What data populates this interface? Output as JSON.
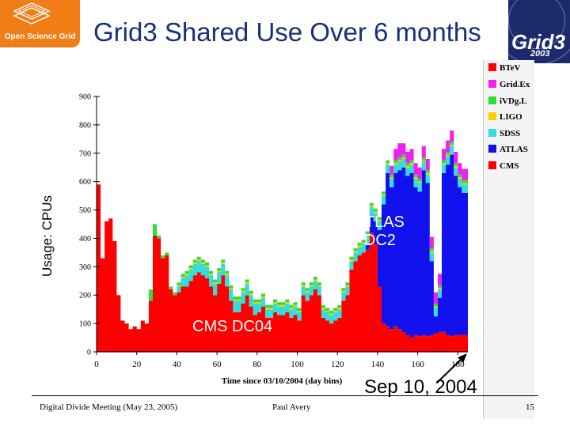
{
  "osg_logo_text": "Open Science Grid",
  "grid3_logo_text": "Grid3",
  "grid3_logo_year": "2003",
  "slide_title": "Grid3 Shared Use Over 6 months",
  "y_axis_label": "Usage: CPUs",
  "footer": {
    "left": "Digital Divide Meeting (May 23, 2005)",
    "center": "Paul Avery",
    "page": "15"
  },
  "annotations": {
    "cms": "CMS DC04",
    "atlas_line1": "ATLAS",
    "atlas_line2": "DC2",
    "date": "Sep 10, 2004"
  },
  "colors": {
    "BTeV": "#ff0000",
    "GridEx": "#ee22ee",
    "iVDgL": "#33dd33",
    "LIGO": "#ffcc00",
    "SDSS": "#33dddd",
    "ATLAS": "#1111ee",
    "CMS": "#ff0000"
  },
  "chart_data": {
    "type": "area",
    "stacked": true,
    "xlabel": "Time since 03/10/2004 (day bins)",
    "ylabel": "Usage: CPUs",
    "xlim": [
      0,
      185
    ],
    "ylim": [
      0,
      900
    ],
    "xticks": [
      "0",
      "20",
      "40",
      "60",
      "80",
      "100",
      "120",
      "140",
      "160",
      "180"
    ],
    "yticks": [
      "0",
      "100",
      "200",
      "300",
      "400",
      "500",
      "600",
      "700",
      "800",
      "900"
    ],
    "legend_position": "right",
    "legend": [
      "BTeV",
      "Grid.Ex",
      "iVDg.L",
      "LIGO",
      "SDSS",
      "ATLAS",
      "CMS"
    ],
    "x": [
      0,
      2,
      4,
      6,
      8,
      10,
      12,
      14,
      16,
      18,
      20,
      22,
      24,
      26,
      28,
      30,
      32,
      34,
      36,
      38,
      40,
      42,
      44,
      46,
      48,
      50,
      52,
      54,
      56,
      58,
      60,
      62,
      64,
      66,
      68,
      70,
      72,
      74,
      76,
      78,
      80,
      82,
      84,
      86,
      88,
      90,
      92,
      94,
      96,
      98,
      100,
      102,
      104,
      106,
      108,
      110,
      112,
      114,
      116,
      118,
      120,
      122,
      124,
      126,
      128,
      130,
      132,
      134,
      136,
      138,
      140,
      142,
      144,
      146,
      148,
      150,
      152,
      154,
      156,
      158,
      160,
      162,
      164,
      166,
      168,
      170,
      172,
      174,
      176,
      178,
      180,
      182,
      184
    ],
    "series": [
      {
        "name": "CMS",
        "values": [
          590,
          330,
          460,
          470,
          390,
          200,
          110,
          100,
          80,
          90,
          80,
          110,
          100,
          180,
          410,
          400,
          330,
          340,
          220,
          200,
          210,
          230,
          230,
          250,
          270,
          280,
          270,
          260,
          230,
          200,
          240,
          270,
          230,
          180,
          140,
          140,
          170,
          200,
          160,
          130,
          140,
          160,
          120,
          120,
          140,
          130,
          130,
          140,
          120,
          130,
          110,
          200,
          180,
          200,
          220,
          200,
          120,
          110,
          100,
          110,
          120,
          180,
          200,
          290,
          320,
          340,
          350,
          360,
          420,
          380,
          230,
          100,
          90,
          80,
          90,
          80,
          70,
          60,
          50,
          60,
          55,
          60,
          55,
          60,
          65,
          70,
          70,
          60,
          55,
          60,
          60,
          60,
          60
        ]
      },
      {
        "name": "ATLAS",
        "values": [
          0,
          0,
          0,
          0,
          0,
          0,
          0,
          0,
          0,
          0,
          0,
          0,
          0,
          0,
          0,
          0,
          0,
          0,
          0,
          0,
          0,
          0,
          0,
          0,
          0,
          0,
          0,
          0,
          0,
          0,
          0,
          0,
          0,
          0,
          0,
          0,
          0,
          0,
          0,
          0,
          0,
          0,
          0,
          0,
          0,
          0,
          0,
          0,
          0,
          0,
          0,
          0,
          0,
          0,
          0,
          0,
          0,
          0,
          0,
          0,
          0,
          0,
          0,
          0,
          0,
          0,
          0,
          20,
          60,
          80,
          200,
          420,
          540,
          500,
          540,
          560,
          580,
          560,
          580,
          520,
          510,
          580,
          540,
          260,
          60,
          120,
          560,
          600,
          640,
          560,
          520,
          500,
          500
        ]
      },
      {
        "name": "SDSS",
        "values": [
          0,
          0,
          0,
          0,
          0,
          0,
          0,
          0,
          0,
          0,
          0,
          0,
          0,
          0,
          0,
          0,
          0,
          0,
          0,
          0,
          20,
          30,
          40,
          40,
          40,
          40,
          40,
          40,
          40,
          40,
          40,
          40,
          40,
          40,
          40,
          40,
          40,
          40,
          40,
          40,
          30,
          30,
          30,
          30,
          30,
          30,
          30,
          30,
          30,
          30,
          30,
          30,
          30,
          30,
          30,
          30,
          30,
          30,
          30,
          30,
          30,
          30,
          30,
          30,
          30,
          30,
          30,
          30,
          30,
          30,
          30,
          30,
          30,
          30,
          30,
          30,
          30,
          30,
          30,
          30,
          30,
          30,
          30,
          30,
          30,
          30,
          30,
          30,
          30,
          30,
          30,
          30,
          30
        ]
      },
      {
        "name": "LIGO",
        "values": [
          0,
          0,
          0,
          0,
          0,
          0,
          0,
          0,
          0,
          0,
          0,
          0,
          0,
          0,
          0,
          0,
          0,
          0,
          0,
          0,
          5,
          5,
          5,
          5,
          5,
          5,
          5,
          5,
          5,
          5,
          5,
          5,
          5,
          5,
          5,
          5,
          5,
          5,
          5,
          5,
          5,
          5,
          5,
          5,
          5,
          5,
          5,
          5,
          5,
          5,
          5,
          5,
          5,
          5,
          5,
          5,
          5,
          5,
          5,
          5,
          5,
          5,
          5,
          5,
          5,
          5,
          5,
          5,
          5,
          5,
          5,
          5,
          5,
          5,
          5,
          5,
          5,
          5,
          5,
          5,
          5,
          5,
          5,
          5,
          5,
          5,
          5,
          5,
          5,
          5,
          5,
          5,
          5
        ]
      },
      {
        "name": "iVDgL",
        "values": [
          0,
          0,
          0,
          0,
          0,
          0,
          0,
          0,
          0,
          0,
          0,
          0,
          0,
          40,
          40,
          10,
          10,
          10,
          10,
          10,
          10,
          10,
          10,
          10,
          10,
          10,
          10,
          10,
          10,
          10,
          10,
          10,
          10,
          10,
          10,
          10,
          10,
          10,
          10,
          10,
          10,
          10,
          10,
          10,
          10,
          10,
          10,
          10,
          10,
          10,
          10,
          10,
          10,
          10,
          10,
          10,
          10,
          10,
          10,
          10,
          10,
          10,
          10,
          10,
          10,
          10,
          10,
          10,
          10,
          10,
          10,
          10,
          10,
          10,
          10,
          10,
          10,
          10,
          10,
          10,
          10,
          10,
          10,
          10,
          10,
          10,
          10,
          10,
          10,
          10,
          10,
          10,
          10
        ]
      },
      {
        "name": "GridEx",
        "values": [
          0,
          0,
          0,
          0,
          0,
          0,
          0,
          0,
          0,
          0,
          0,
          0,
          0,
          0,
          0,
          0,
          0,
          0,
          0,
          0,
          0,
          0,
          0,
          0,
          0,
          0,
          0,
          0,
          0,
          0,
          0,
          0,
          0,
          0,
          0,
          0,
          0,
          0,
          0,
          0,
          0,
          0,
          0,
          0,
          0,
          0,
          0,
          0,
          0,
          0,
          0,
          0,
          0,
          0,
          0,
          0,
          0,
          0,
          0,
          0,
          0,
          0,
          0,
          0,
          0,
          0,
          0,
          0,
          0,
          0,
          0,
          0,
          0,
          30,
          40,
          50,
          40,
          40,
          40,
          40,
          40,
          40,
          40,
          40,
          40,
          40,
          40,
          40,
          40,
          40,
          40,
          40,
          40
        ]
      },
      {
        "name": "BTeV",
        "values": [
          0,
          0,
          0,
          0,
          0,
          0,
          0,
          0,
          0,
          0,
          0,
          0,
          0,
          0,
          0,
          0,
          0,
          0,
          0,
          0,
          0,
          0,
          0,
          0,
          0,
          0,
          0,
          0,
          0,
          0,
          0,
          0,
          0,
          0,
          0,
          0,
          0,
          0,
          0,
          0,
          0,
          0,
          0,
          0,
          0,
          0,
          0,
          0,
          0,
          0,
          0,
          0,
          0,
          0,
          0,
          0,
          0,
          0,
          0,
          0,
          0,
          0,
          0,
          0,
          0,
          0,
          0,
          0,
          0,
          0,
          0,
          0,
          0,
          0,
          0,
          0,
          0,
          0,
          0,
          0,
          0,
          0,
          0,
          0,
          0,
          0,
          0,
          0,
          0,
          0,
          0,
          0,
          0
        ]
      }
    ]
  }
}
